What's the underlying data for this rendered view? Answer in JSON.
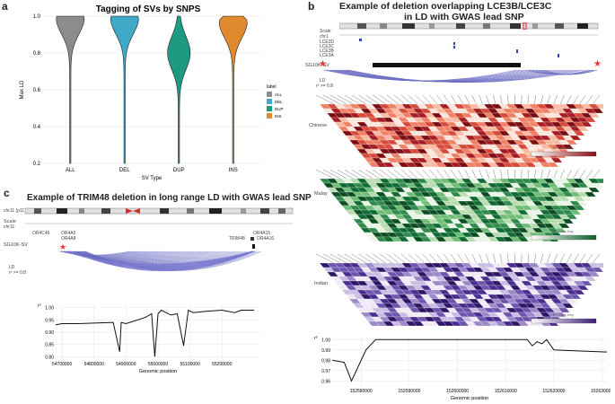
{
  "panel_a": {
    "letter": "a",
    "legend_title": "label",
    "legend_items": [
      "ALL",
      "DEL",
      "DUP",
      "INS"
    ]
  },
  "panel_b": {
    "letter": "b",
    "title_line1": "Example of deletion overlapping LCE3B/LCE3C",
    "title_line2": "in LD with GWAS lead SNP",
    "scale_label": "Scale",
    "chrom_label": "chr1",
    "genes": [
      "LCE3D",
      "LCE3C",
      "LCE3B",
      "LCE3A"
    ],
    "sv_label": "SG10K-SV",
    "ld_label": "LD",
    "ld_threshold": "r² >= 0.8",
    "populations": [
      "Chinese",
      "Malay",
      "Indian"
    ],
    "color_key_label": "R² Color Key",
    "r2_label": "r²"
  },
  "panel_c": {
    "letter": "c",
    "title": "Example of TRIM48 deletion in long range LD with GWAS lead SNP",
    "chrom_label": "chr11 (p11)",
    "scale_label": "Scale",
    "chr_short": "chr11:",
    "genes_top": [
      "OR4C46",
      "OR4A5",
      "OR4A8"
    ],
    "genes_right": [
      "OR4A15",
      "OR4A16"
    ],
    "trim_gene": "TRIM48",
    "sv_label": "SG10K-SV",
    "ld_label": "LD",
    "ld_threshold": "r² >= 0.8",
    "r2_label": "r²"
  },
  "chart_data": [
    {
      "id": "violin",
      "type": "violin",
      "title": "Tagging of SVs by SNPS",
      "xlabel": "SV Type",
      "ylabel": "Max LD",
      "categories": [
        "ALL",
        "DEL",
        "DUP",
        "INS"
      ],
      "colors": [
        "#8c8c8c",
        "#3fa9c6",
        "#1f9a82",
        "#e08a2e"
      ],
      "ylim": [
        0.2,
        1.0
      ],
      "yticks": [
        "0.2",
        "0.4",
        "0.6",
        "0.8",
        "1.0"
      ],
      "min": [
        0.2,
        0.2,
        0.2,
        0.2
      ],
      "max": [
        1.0,
        1.0,
        1.0,
        1.0
      ],
      "mode": [
        0.99,
        0.99,
        0.8,
        0.97
      ]
    },
    {
      "id": "b_r2",
      "type": "line",
      "ylabel": "r²",
      "xlabel": "Genomic position",
      "xticks": [
        "152580000",
        "152590000",
        "152600000",
        "152610000",
        "152620000",
        "152630000"
      ],
      "yticks": [
        "0.96",
        "0.97",
        "0.98",
        "0.99",
        "1.00"
      ],
      "x": [
        152574000,
        152576500,
        152578000,
        152581000,
        152583000,
        152614500,
        152615500,
        152616500,
        152617500,
        152618500,
        152620000,
        152625000,
        152631000
      ],
      "y": [
        0.98,
        0.978,
        0.96,
        0.99,
        1.0,
        1.0,
        0.994,
        0.998,
        0.996,
        1.0,
        0.99,
        0.989,
        0.988
      ],
      "xlim": [
        152574000,
        152631000
      ],
      "ylim": [
        0.955,
        1.002
      ]
    },
    {
      "id": "c_r2",
      "type": "line",
      "ylabel": "r²",
      "xlabel": "Genomic position",
      "xticks": [
        "54700000",
        "54800000",
        "54900000",
        "55000000",
        "55100000",
        "55200000"
      ],
      "yticks": [
        "0.80",
        "0.85",
        "0.90",
        "0.95",
        "1.00"
      ],
      "x": [
        54680000,
        54700000,
        54750000,
        54820000,
        54860000,
        54880000,
        54885000,
        54900000,
        54960000,
        54980000,
        54990000,
        55000000,
        55010000,
        55040000,
        55060000,
        55080000,
        55095000,
        55110000,
        55150000,
        55200000,
        55240000,
        55260000,
        55300000
      ],
      "y": [
        0.93,
        0.935,
        0.935,
        0.938,
        0.94,
        0.82,
        0.94,
        0.935,
        0.96,
        0.975,
        0.8,
        0.975,
        0.99,
        0.97,
        0.975,
        0.845,
        0.99,
        0.98,
        0.985,
        0.99,
        0.98,
        0.99,
        0.99
      ],
      "xlim": [
        54680000,
        55320000
      ],
      "ylim": [
        0.79,
        1.01
      ]
    }
  ]
}
